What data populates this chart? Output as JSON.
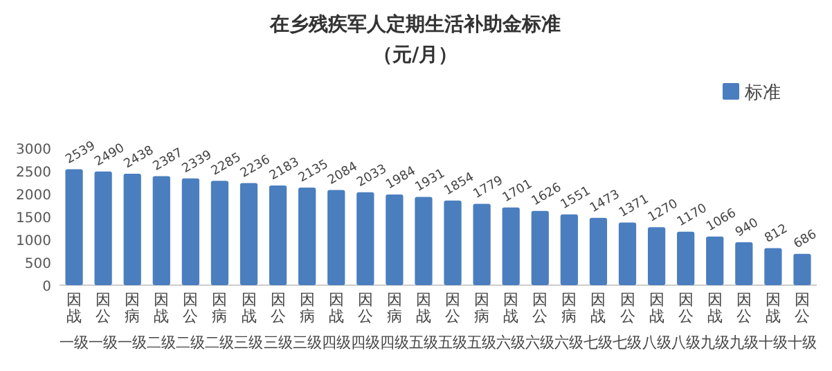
{
  "chart_data": {
    "type": "bar",
    "title": "在乡残疾军人定期生活补助金标准",
    "subtitle": "（元/月）",
    "categories": [
      "因战一级",
      "因公一级",
      "因病一级",
      "因战二级",
      "因公二级",
      "因病二级",
      "因战三级",
      "因公三级",
      "因病三级",
      "因战四级",
      "因公四级",
      "因病四级",
      "因战五级",
      "因公五级",
      "因病五级",
      "因战六级",
      "因公六级",
      "因病六级",
      "因战七级",
      "因公七级",
      "因战八级",
      "因公八级",
      "因战九级",
      "因公九级",
      "因战十级",
      "因公十级"
    ],
    "series": [
      {
        "name": "标准",
        "color": "#4a7ebf",
        "values": [
          2539,
          2490,
          2438,
          2387,
          2339,
          2285,
          2236,
          2183,
          2135,
          2084,
          2033,
          1984,
          1931,
          1854,
          1779,
          1701,
          1626,
          1551,
          1473,
          1371,
          1270,
          1170,
          1066,
          940,
          812,
          686
        ]
      }
    ],
    "ylim": [
      0,
      3000
    ],
    "yticks": [
      0,
      500,
      1000,
      1500,
      2000,
      2500,
      3000
    ],
    "grid": false,
    "legend": "top right",
    "data_labels": true
  }
}
